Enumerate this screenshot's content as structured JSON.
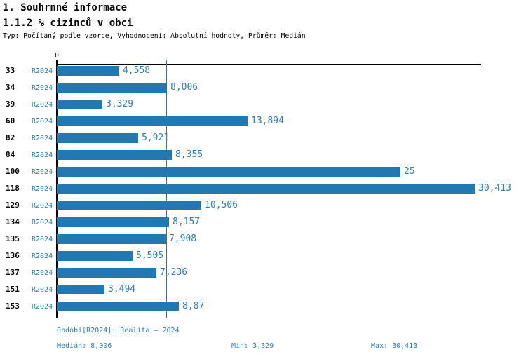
{
  "header": {
    "section_title": "1. Souhrnné informace",
    "indicator_title": "1.1.2 % cizinců v obci",
    "meta": "Typ: Počítaný podle vzorce, Vyhodnocení: Absolutní hodnoty, Průměr: Medián"
  },
  "chart_data": {
    "type": "bar",
    "orientation": "horizontal",
    "title": "1.1.2 % cizinců v obci",
    "categories": [
      "33",
      "34",
      "39",
      "60",
      "82",
      "84",
      "100",
      "118",
      "129",
      "134",
      "135",
      "136",
      "137",
      "151",
      "153"
    ],
    "series": [
      {
        "name": "R2024",
        "values": [
          4.558,
          8.006,
          3.329,
          13.894,
          5.921,
          8.355,
          25,
          30.413,
          10.506,
          8.157,
          7.908,
          5.505,
          7.236,
          3.494,
          8.87
        ],
        "value_labels": [
          "4,558",
          "8,006",
          "3,329",
          "13,894",
          "5,921",
          "8,355",
          "25",
          "30,413",
          "10,506",
          "8,157",
          "7,908",
          "5,505",
          "7,236",
          "3,494",
          "8,87"
        ]
      }
    ],
    "axis": {
      "zero_label": "0",
      "xlim": [
        0,
        30.9
      ],
      "median_gridline": 8.006,
      "grid": "single median line"
    },
    "legend_position": "none",
    "stats": {
      "median": 8.006,
      "min": 3.329,
      "max": 30.413
    }
  },
  "footer": {
    "period": "Období[R2024]: Realita – 2024",
    "median": "Medián: 8,006",
    "min": "Min: 3,329",
    "max": "Max: 30,413"
  },
  "colors": {
    "bar_blue": "#2278b0",
    "text_blue": "#2e7fb8",
    "axis_black": "#000000",
    "background": "#ffffff"
  }
}
